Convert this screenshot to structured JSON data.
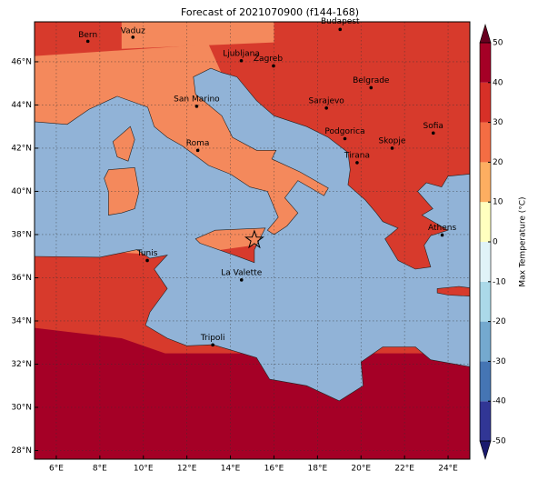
{
  "title": "Forecast of 2021070900 (f144-168)",
  "map": {
    "xlim": [
      5,
      25
    ],
    "ylim": [
      27.6,
      47.85
    ],
    "xticks": [
      {
        "value": 6,
        "label": "6°E"
      },
      {
        "value": 8,
        "label": "8°E"
      },
      {
        "value": 10,
        "label": "10°E"
      },
      {
        "value": 12,
        "label": "12°E"
      },
      {
        "value": 14,
        "label": "14°E"
      },
      {
        "value": 16,
        "label": "16°E"
      },
      {
        "value": 18,
        "label": "18°E"
      },
      {
        "value": 20,
        "label": "20°E"
      },
      {
        "value": 22,
        "label": "22°E"
      },
      {
        "value": 24,
        "label": "24°E"
      }
    ],
    "yticks": [
      {
        "value": 28,
        "label": "28°N"
      },
      {
        "value": 30,
        "label": "30°N"
      },
      {
        "value": 32,
        "label": "32°N"
      },
      {
        "value": 34,
        "label": "34°N"
      },
      {
        "value": 36,
        "label": "36°N"
      },
      {
        "value": 38,
        "label": "38°N"
      },
      {
        "value": 40,
        "label": "40°N"
      },
      {
        "value": 42,
        "label": "42°N"
      },
      {
        "value": 44,
        "label": "44°N"
      },
      {
        "value": 46,
        "label": "46°N"
      }
    ],
    "grid": true,
    "cities": [
      "Budapest",
      "Bern",
      "Vaduz",
      "Ljubljana",
      "Zagreb",
      "Belgrade",
      "San Marino",
      "Sarajevo",
      "Sofia",
      "Podgorica",
      "Skopje",
      "Roma",
      "Tirana",
      "Athens",
      "Tunis",
      "La Valette",
      "Tripoli"
    ]
  },
  "colorbar": {
    "label": "Max Temperature (°C)",
    "lim": [
      -50,
      50
    ],
    "ticks": [
      -50,
      -40,
      -30,
      -20,
      -10,
      0,
      10,
      20,
      30,
      40,
      50
    ],
    "colors": [
      "#313695",
      "#4575b4",
      "#74a9cf",
      "#abd9e9",
      "#e0f3f8",
      "#ffffbf",
      "#fdae61",
      "#f46d43",
      "#d73027",
      "#a50026"
    ],
    "under_color": "#1a1a6e",
    "over_color": "#67001f"
  }
}
